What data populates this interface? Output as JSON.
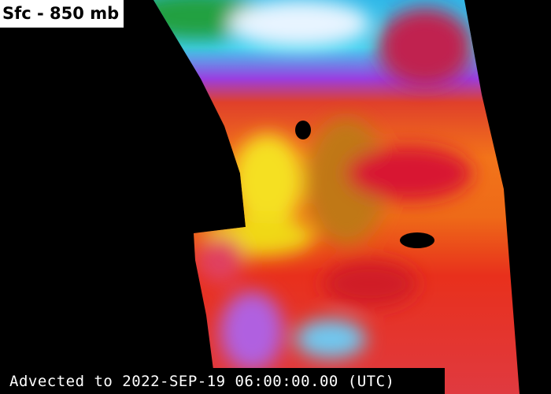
{
  "label": "Sfc - 850 mb",
  "timestamp": "Advected to 2022-SEP-19 06:00:00.00 (UTC)"
}
